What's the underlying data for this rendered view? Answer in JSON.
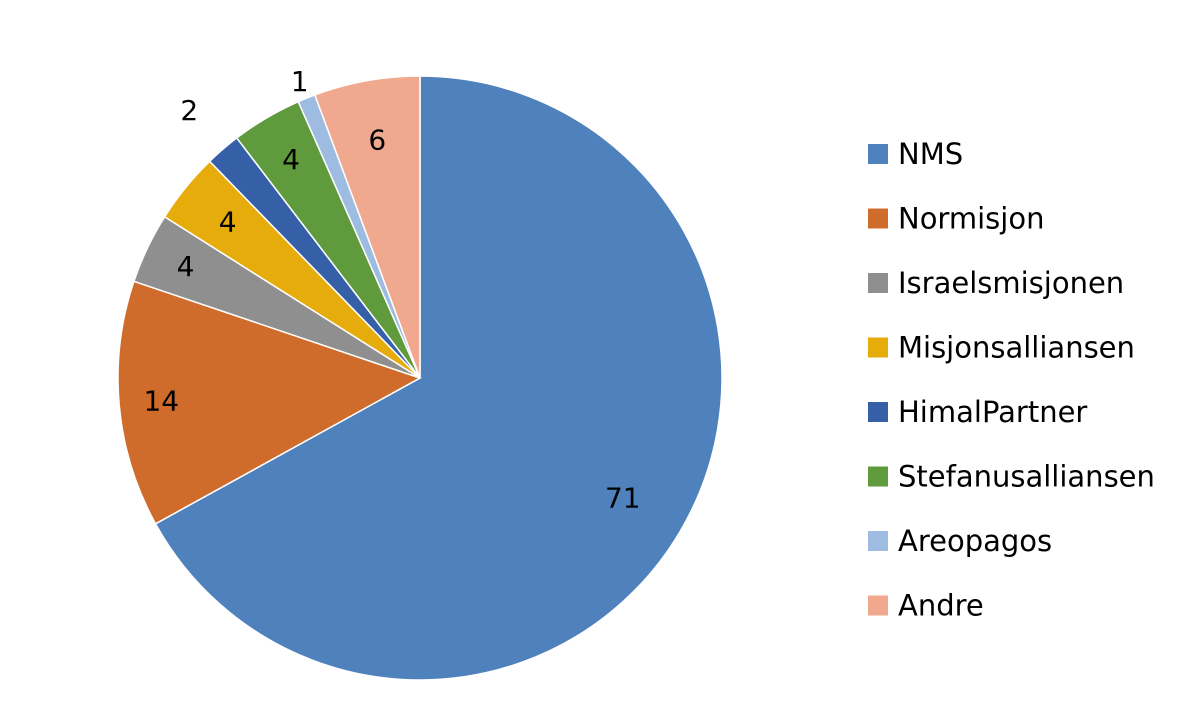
{
  "chart_data": {
    "type": "pie",
    "title": "",
    "legend_position": "right",
    "slices": [
      {
        "label": "NMS",
        "value": 71,
        "color": "#4F81BD"
      },
      {
        "label": "Normisjon",
        "value": 14,
        "color": "#D06C2B"
      },
      {
        "label": "Israelsmisjonen",
        "value": 4,
        "color": "#8F8F8F"
      },
      {
        "label": "Misjonsalliansen",
        "value": 4,
        "color": "#E5AC0C"
      },
      {
        "label": "HimalPartner",
        "value": 2,
        "color": "#3560A8"
      },
      {
        "label": "Stefanusalliansen",
        "value": 4,
        "color": "#5F9A3D"
      },
      {
        "label": "Areopagos",
        "value": 1,
        "color": "#9EBCE2"
      },
      {
        "label": "Andre",
        "value": 6,
        "color": "#F0A98E"
      }
    ]
  }
}
